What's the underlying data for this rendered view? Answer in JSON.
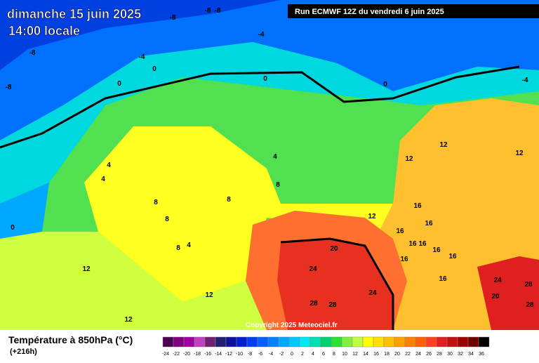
{
  "header": {
    "date": "dimanche 15 juin 2025",
    "time": "14:00 locale",
    "run": "Run ECMWF 12Z du vendredi 6 juin 2025"
  },
  "map": {
    "copyright": "Copyright 2025 Meteociel.fr",
    "labels": [
      "-8",
      "-8",
      "-8",
      "-4",
      "-8",
      "-4",
      "0",
      "-8",
      "0",
      "0",
      "0",
      "-4",
      "12",
      "12",
      "4",
      "4",
      "4",
      "12",
      "8",
      "8",
      "8",
      "16",
      "12",
      "8",
      "16",
      "16",
      "16",
      "16",
      "8",
      "4",
      "20",
      "16",
      "16",
      "16",
      "24",
      "12",
      "16",
      "24",
      "28",
      "12",
      "24",
      "20",
      "28",
      "28",
      "28",
      "12",
      "0"
    ]
  },
  "legend": {
    "title": "Température à 850hPa (°C)",
    "lead": "(+216h)",
    "ticks": [
      -24,
      -22,
      -20,
      -18,
      -16,
      -14,
      -12,
      -10,
      -8,
      -6,
      -4,
      -2,
      0,
      2,
      4,
      6,
      8,
      10,
      12,
      14,
      16,
      18,
      20,
      22,
      24,
      26,
      28,
      30,
      32,
      34,
      36
    ],
    "colors": [
      "#4b0050",
      "#800080",
      "#a000a0",
      "#c040c0",
      "#702070",
      "#202070",
      "#1010a0",
      "#0020d0",
      "#0040f0",
      "#0060ff",
      "#0080ff",
      "#00a8ff",
      "#00c8ff",
      "#00e8f0",
      "#00e0b0",
      "#00d070",
      "#30e030",
      "#80f040",
      "#c0ff40",
      "#ffff00",
      "#ffe000",
      "#ffc000",
      "#ffa000",
      "#ff8000",
      "#ff6000",
      "#ff4020",
      "#e02020",
      "#c01010",
      "#a00000",
      "#700000",
      "#000000"
    ]
  }
}
